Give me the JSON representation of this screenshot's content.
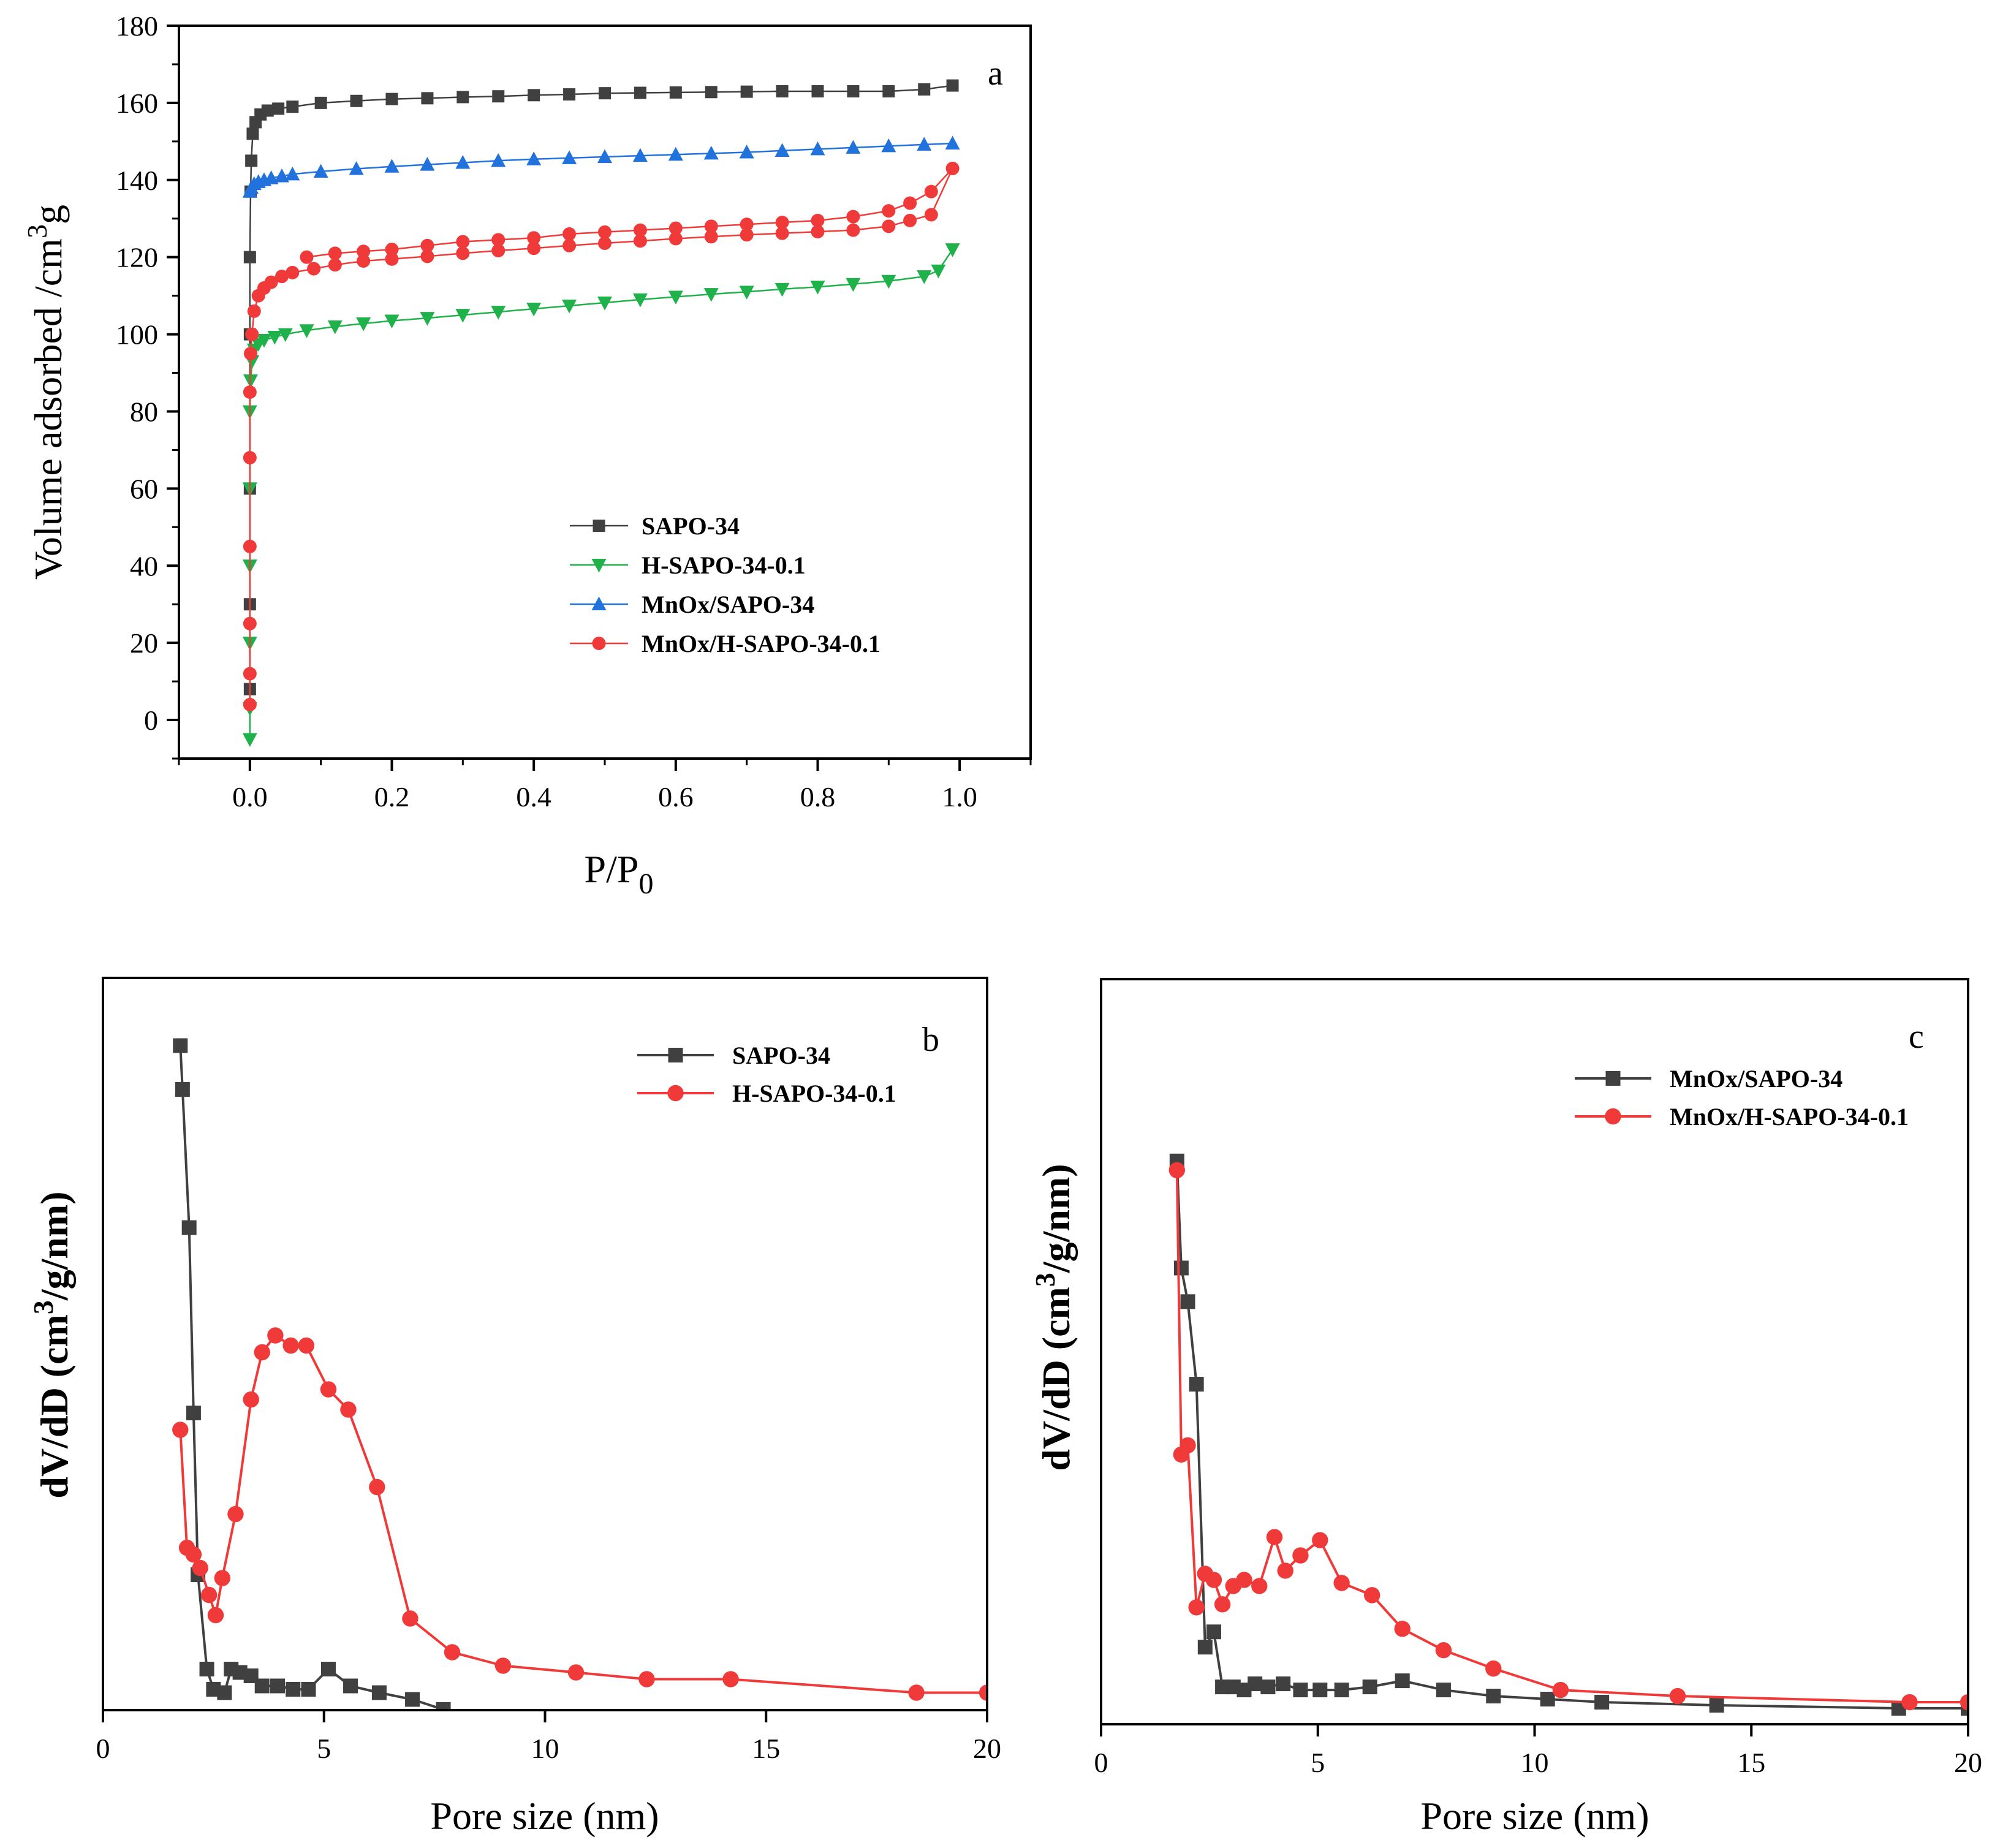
{
  "figure": {
    "colors": {
      "black": "#404040",
      "green": "#1fb14a",
      "blue": "#2172dc",
      "red": "#f03a3a"
    }
  },
  "chart_data": [
    {
      "id": "a",
      "type": "line",
      "panel_label": "a",
      "xlabel": "P/P",
      "xlabel_sub": "0",
      "ylabel": "Volume adsorbed /cm",
      "ylabel_sup": "3",
      "ylabel_tail": "g",
      "xlim": [
        -0.1,
        1.1
      ],
      "ylim": [
        -10,
        180
      ],
      "xticks": [
        0.0,
        0.2,
        0.4,
        0.6,
        0.8,
        1.0
      ],
      "xtick_labels": [
        "0.0",
        "0.2",
        "0.4",
        "0.6",
        "0.8",
        "1.0"
      ],
      "yticks": [
        0,
        20,
        40,
        60,
        80,
        100,
        120,
        140,
        160,
        180
      ],
      "ytick_labels": [
        "0",
        "20",
        "40",
        "60",
        "80",
        "100",
        "120",
        "140",
        "160",
        "180"
      ],
      "legend_position": "lower-right",
      "series": [
        {
          "name": "SAPO-34",
          "color": "#404040",
          "marker": "square",
          "x": [
            0.0,
            0.0,
            0.0,
            0.0,
            0.0,
            0.001,
            0.002,
            0.004,
            0.008,
            0.015,
            0.025,
            0.04,
            0.06,
            0.1,
            0.15,
            0.2,
            0.25,
            0.3,
            0.35,
            0.4,
            0.45,
            0.5,
            0.55,
            0.6,
            0.65,
            0.7,
            0.75,
            0.8,
            0.85,
            0.9,
            0.95,
            0.99
          ],
          "y": [
            8,
            30,
            60,
            100,
            120,
            137,
            145,
            152,
            155,
            157,
            158,
            158.5,
            159,
            160,
            160.5,
            161,
            161.2,
            161.5,
            161.7,
            162,
            162.2,
            162.5,
            162.6,
            162.7,
            162.8,
            162.9,
            163,
            163,
            163,
            163,
            163.5,
            164.5
          ]
        },
        {
          "name": "H-SAPO-34-0.1",
          "color": "#1fb14a",
          "marker": "triangle-down",
          "x": [
            0.0,
            0.0,
            0.0,
            0.0,
            0.0,
            0.0,
            0.001,
            0.003,
            0.006,
            0.012,
            0.02,
            0.035,
            0.05,
            0.08,
            0.12,
            0.16,
            0.2,
            0.25,
            0.3,
            0.35,
            0.4,
            0.45,
            0.5,
            0.55,
            0.6,
            0.65,
            0.7,
            0.75,
            0.8,
            0.85,
            0.9,
            0.95,
            0.97,
            0.99
          ],
          "y": [
            -5,
            3,
            20,
            40,
            60,
            80,
            88,
            93,
            96,
            97.5,
            98.5,
            99.3,
            100,
            101,
            102,
            102.8,
            103.5,
            104.2,
            105,
            105.8,
            106.6,
            107.4,
            108.2,
            109,
            109.7,
            110.4,
            111,
            111.7,
            112.3,
            113,
            113.8,
            115,
            116.5,
            122
          ]
        },
        {
          "name": "MnOx/SAPO-34",
          "color": "#2172dc",
          "marker": "triangle-up",
          "x": [
            0.0,
            0.002,
            0.006,
            0.012,
            0.02,
            0.03,
            0.045,
            0.06,
            0.1,
            0.15,
            0.2,
            0.25,
            0.3,
            0.35,
            0.4,
            0.45,
            0.5,
            0.55,
            0.6,
            0.65,
            0.7,
            0.75,
            0.8,
            0.85,
            0.9,
            0.95,
            0.99
          ],
          "y": [
            137,
            138,
            139,
            139.5,
            140,
            140.5,
            141,
            141.5,
            142.2,
            142.9,
            143.5,
            144,
            144.5,
            145,
            145.4,
            145.7,
            146,
            146.3,
            146.6,
            146.9,
            147.2,
            147.6,
            148,
            148.4,
            148.8,
            149.2,
            149.5
          ]
        },
        {
          "name": "MnOx/H-SAPO-34-0.1",
          "color": "#f03a3a",
          "marker": "circle",
          "x": [
            0.0,
            0.0,
            0.0,
            0.0,
            0.0,
            0.0,
            0.001,
            0.003,
            0.006,
            0.012,
            0.02,
            0.03,
            0.045,
            0.06,
            0.09,
            0.12,
            0.16,
            0.2,
            0.25,
            0.3,
            0.35,
            0.4,
            0.45,
            0.5,
            0.55,
            0.6,
            0.65,
            0.7,
            0.75,
            0.8,
            0.85,
            0.9,
            0.93,
            0.96,
            0.99,
            0.96,
            0.93,
            0.9,
            0.85,
            0.8,
            0.75,
            0.7,
            0.65,
            0.6,
            0.55,
            0.5,
            0.45,
            0.4,
            0.35,
            0.3,
            0.25,
            0.2,
            0.16,
            0.12,
            0.08
          ],
          "y": [
            4,
            12,
            25,
            45,
            68,
            85,
            95,
            100,
            106,
            110,
            112,
            113.5,
            115,
            116,
            117,
            118,
            119,
            119.5,
            120.2,
            121,
            121.7,
            122.3,
            123,
            123.6,
            124.2,
            124.8,
            125.3,
            125.8,
            126.2,
            126.6,
            127,
            128,
            129.5,
            131,
            143,
            137,
            134,
            132,
            130.5,
            129.5,
            129,
            128.5,
            128,
            127.5,
            127,
            126.5,
            126,
            125,
            124.5,
            124,
            123,
            122,
            121.5,
            121,
            120
          ]
        }
      ]
    },
    {
      "id": "b",
      "type": "line",
      "panel_label": "b",
      "xlabel": "Pore size (nm)",
      "ylabel": "dV/dD (cm",
      "ylabel_sup": "3",
      "ylabel_tail": "/g/nm)",
      "xlim": [
        0,
        20
      ],
      "ylim": [
        0,
        1
      ],
      "xticks": [
        0,
        5,
        10,
        15,
        20
      ],
      "xtick_labels": [
        "0",
        "5",
        "10",
        "15",
        "20"
      ],
      "legend_position": "top-right",
      "series": [
        {
          "name": "SAPO-34",
          "color": "#404040",
          "marker": "square",
          "x": [
            1.75,
            1.8,
            1.95,
            2.05,
            2.15,
            2.35,
            2.5,
            2.75,
            2.9,
            3.1,
            3.35,
            3.6,
            3.95,
            4.3,
            4.65,
            5.1,
            5.6,
            6.25,
            7.0,
            7.7
          ],
          "y": [
            0.985,
            0.92,
            0.715,
            0.44,
            0.2,
            0.06,
            0.03,
            0.025,
            0.06,
            0.055,
            0.05,
            0.035,
            0.035,
            0.03,
            0.03,
            0.06,
            0.035,
            0.025,
            0.015,
            0.0
          ]
        },
        {
          "name": "H-SAPO-34-0.1",
          "color": "#f03a3a",
          "marker": "circle",
          "x": [
            1.75,
            1.9,
            2.05,
            2.2,
            2.4,
            2.55,
            2.7,
            3.0,
            3.35,
            3.6,
            3.9,
            4.25,
            4.6,
            5.1,
            5.55,
            6.2,
            6.95,
            7.9,
            9.05,
            10.7,
            12.3,
            14.2,
            18.4,
            20.0
          ],
          "y": [
            0.415,
            0.24,
            0.23,
            0.21,
            0.17,
            0.14,
            0.195,
            0.29,
            0.46,
            0.53,
            0.555,
            0.54,
            0.54,
            0.475,
            0.445,
            0.33,
            0.135,
            0.085,
            0.065,
            0.055,
            0.045,
            0.045,
            0.025,
            0.025
          ]
        }
      ]
    },
    {
      "id": "c",
      "type": "line",
      "panel_label": "c",
      "xlabel": "Pore size (nm)",
      "ylabel": "dV/dD (cm",
      "ylabel_sup": "3",
      "ylabel_tail": "/g/nm)",
      "xlim": [
        0,
        20
      ],
      "ylim": [
        0,
        1
      ],
      "xticks": [
        0,
        5,
        10,
        15,
        20
      ],
      "xtick_labels": [
        "0",
        "5",
        "10",
        "15",
        "20"
      ],
      "legend_position": "top-right",
      "series": [
        {
          "name": "MnOx/SAPO-34",
          "color": "#404040",
          "marker": "square",
          "x": [
            1.75,
            1.85,
            2.0,
            2.2,
            2.4,
            2.6,
            2.8,
            3.05,
            3.3,
            3.55,
            3.85,
            4.2,
            4.6,
            5.05,
            5.55,
            6.2,
            6.95,
            7.9,
            9.05,
            10.3,
            11.55,
            14.2,
            18.4,
            20.0
          ],
          "y": [
            0.895,
            0.72,
            0.665,
            0.53,
            0.1,
            0.125,
            0.035,
            0.035,
            0.03,
            0.04,
            0.035,
            0.04,
            0.03,
            0.03,
            0.03,
            0.035,
            0.045,
            0.03,
            0.02,
            0.015,
            0.01,
            0.005,
            0.0,
            0.0
          ]
        },
        {
          "name": "MnOx/H-SAPO-34-0.1",
          "color": "#f03a3a",
          "marker": "circle",
          "x": [
            1.75,
            1.85,
            2.0,
            2.2,
            2.4,
            2.6,
            2.8,
            3.05,
            3.3,
            3.65,
            4.0,
            4.25,
            4.6,
            5.05,
            5.55,
            6.25,
            6.95,
            7.9,
            9.05,
            10.6,
            13.3,
            18.65,
            20.0
          ],
          "y": [
            0.88,
            0.415,
            0.43,
            0.165,
            0.22,
            0.21,
            0.17,
            0.2,
            0.21,
            0.2,
            0.28,
            0.225,
            0.25,
            0.275,
            0.205,
            0.185,
            0.13,
            0.095,
            0.065,
            0.03,
            0.02,
            0.01,
            0.01
          ]
        }
      ]
    }
  ]
}
